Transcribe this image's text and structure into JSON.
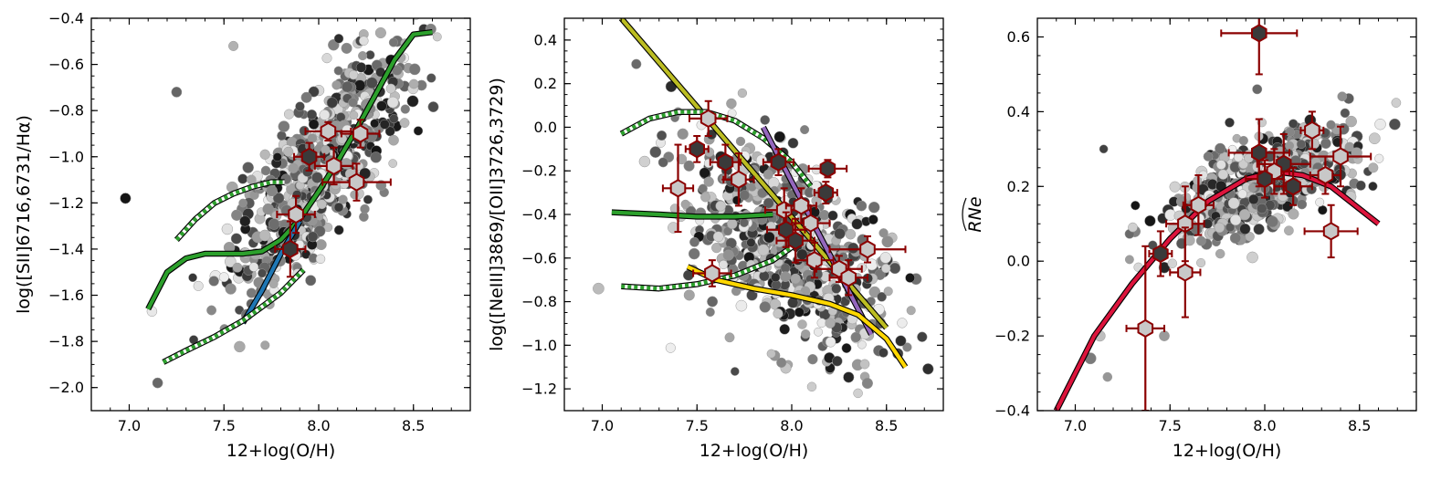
{
  "chart_data": [
    {
      "type": "scatter",
      "xlabel": "12+log(O/H)",
      "ylabel": "log([SII]6716,6731/Hα)",
      "xlim": [
        6.8,
        8.8
      ],
      "ylim": [
        -2.1,
        -0.4
      ],
      "xticks": [
        7.0,
        7.5,
        8.0,
        8.5
      ],
      "xtick_labels": [
        "7.0",
        "7.5",
        "8.0",
        "8.5"
      ],
      "yticks": [
        -2.0,
        -1.8,
        -1.6,
        -1.4,
        -1.2,
        -1.0,
        -0.8,
        -0.6,
        -0.4
      ],
      "ytick_labels": [
        "−2.0",
        "−1.8",
        "−1.6",
        "−1.4",
        "−1.2",
        "−1.0",
        "−0.8",
        "−0.6",
        "−0.4"
      ],
      "cloud": {
        "x_mean": 8.0,
        "x_sd": 0.24,
        "y_center": -1.05,
        "slope": 0.9,
        "y_sd": 0.17,
        "n": 700,
        "outliers": [
          [
            6.98,
            -1.18
          ],
          [
            7.15,
            -1.98
          ],
          [
            7.55,
            -0.52
          ],
          [
            7.25,
            -0.72
          ],
          [
            7.12,
            -1.67
          ]
        ]
      },
      "curves": [
        {
          "name": "green-solid",
          "color": "#2ca02c",
          "style": "solid",
          "x": [
            7.1,
            7.2,
            7.3,
            7.4,
            7.5,
            7.6,
            7.7,
            7.8,
            7.9,
            8.0,
            8.1,
            8.2,
            8.3,
            8.4,
            8.5,
            8.6
          ],
          "y": [
            -1.66,
            -1.5,
            -1.44,
            -1.42,
            -1.42,
            -1.42,
            -1.41,
            -1.36,
            -1.27,
            -1.15,
            -1.02,
            -0.88,
            -0.73,
            -0.58,
            -0.47,
            -0.46
          ]
        },
        {
          "name": "blue",
          "color": "#1f77b4",
          "style": "solid",
          "x": [
            7.6,
            7.7,
            7.8,
            7.9
          ],
          "y": [
            -1.72,
            -1.58,
            -1.42,
            -1.28
          ]
        },
        {
          "name": "green-dashed-high",
          "color": "#2ca02c",
          "style": "dashed",
          "x": [
            7.25,
            7.35,
            7.45,
            7.55,
            7.65,
            7.75,
            7.82
          ],
          "y": [
            -1.36,
            -1.27,
            -1.2,
            -1.16,
            -1.13,
            -1.11,
            -1.11
          ]
        },
        {
          "name": "green-dashed-low",
          "color": "#2ca02c",
          "style": "dashed",
          "x": [
            7.18,
            7.3,
            7.45,
            7.6,
            7.7,
            7.8,
            7.92
          ],
          "y": [
            -1.89,
            -1.84,
            -1.78,
            -1.71,
            -1.65,
            -1.59,
            -1.49
          ]
        }
      ],
      "binned": [
        {
          "x": 8.05,
          "y": -0.89,
          "xerr": 0.12,
          "yerr": 0.04,
          "shade": "light"
        },
        {
          "x": 8.22,
          "y": -0.9,
          "xerr": 0.1,
          "yerr": 0.06,
          "shade": "light"
        },
        {
          "x": 7.95,
          "y": -1.0,
          "xerr": 0.08,
          "yerr": 0.06,
          "shade": "dark"
        },
        {
          "x": 8.08,
          "y": -1.04,
          "xerr": 0.1,
          "yerr": 0.08,
          "shade": "light"
        },
        {
          "x": 8.2,
          "y": -1.11,
          "xerr": 0.18,
          "yerr": 0.08,
          "shade": "light"
        },
        {
          "x": 7.88,
          "y": -1.25,
          "xerr": 0.1,
          "yerr": 0.08,
          "shade": "light"
        },
        {
          "x": 7.85,
          "y": -1.4,
          "xerr": 0.08,
          "yerr": 0.12,
          "shade": "dark"
        }
      ]
    },
    {
      "type": "scatter",
      "xlabel": "12+log(O/H)",
      "ylabel": "log([NeIII]3869/[OII]3726,3729)",
      "xlim": [
        6.8,
        8.8
      ],
      "ylim": [
        -1.3,
        0.5
      ],
      "xticks": [
        7.0,
        7.5,
        8.0,
        8.5
      ],
      "xtick_labels": [
        "7.0",
        "7.5",
        "8.0",
        "8.5"
      ],
      "yticks": [
        -1.2,
        -1.0,
        -0.8,
        -0.6,
        -0.4,
        -0.2,
        0.0,
        0.2,
        0.4
      ],
      "ytick_labels": [
        "−1.2",
        "−1.0",
        "−0.8",
        "−0.6",
        "−0.4",
        "−0.2",
        "0.0",
        "0.2",
        "0.4"
      ],
      "cloud": {
        "x_mean": 8.0,
        "x_sd": 0.26,
        "y_center": -0.55,
        "slope": -0.4,
        "y_sd": 0.2,
        "n": 700,
        "outliers": [
          [
            6.98,
            -0.74
          ],
          [
            7.7,
            -1.12
          ],
          [
            8.35,
            -1.22
          ],
          [
            7.18,
            0.29
          ],
          [
            7.4,
            0.07
          ]
        ]
      },
      "curves": [
        {
          "name": "yellow-olive-line",
          "color": "#bcbd22",
          "style": "solid",
          "x": [
            7.1,
            8.5
          ],
          "y": [
            0.5,
            -0.92
          ]
        },
        {
          "name": "green-solid",
          "color": "#2ca02c",
          "style": "solid",
          "x": [
            7.05,
            7.3,
            7.5,
            7.7,
            7.9
          ],
          "y": [
            -0.39,
            -0.4,
            -0.41,
            -0.41,
            -0.4
          ]
        },
        {
          "name": "green-dashed-top",
          "color": "#2ca02c",
          "style": "dashed",
          "x": [
            7.1,
            7.25,
            7.4,
            7.55,
            7.7,
            7.85,
            8.0,
            8.1
          ],
          "y": [
            -0.03,
            0.04,
            0.07,
            0.07,
            0.03,
            -0.05,
            -0.16,
            -0.27
          ]
        },
        {
          "name": "green-dashed-low",
          "color": "#2ca02c",
          "style": "dashed",
          "x": [
            7.1,
            7.3,
            7.5,
            7.7,
            7.9,
            8.0
          ],
          "y": [
            -0.73,
            -0.74,
            -0.72,
            -0.68,
            -0.61,
            -0.55
          ]
        },
        {
          "name": "purple",
          "color": "#9467bd",
          "style": "solid",
          "x": [
            7.85,
            8.0,
            8.15,
            8.3,
            8.42
          ],
          "y": [
            0.0,
            -0.25,
            -0.5,
            -0.75,
            -0.95
          ]
        },
        {
          "name": "yellow",
          "color": "#ffd700",
          "style": "solid",
          "x": [
            7.45,
            7.6,
            7.8,
            8.0,
            8.2,
            8.35,
            8.5,
            8.6
          ],
          "y": [
            -0.64,
            -0.7,
            -0.74,
            -0.77,
            -0.81,
            -0.86,
            -0.97,
            -1.1
          ]
        }
      ],
      "binned": [
        {
          "x": 7.56,
          "y": 0.04,
          "xerr": 0.1,
          "yerr": 0.08,
          "shade": "light"
        },
        {
          "x": 7.5,
          "y": -0.1,
          "xerr": 0.06,
          "yerr": 0.06,
          "shade": "dark"
        },
        {
          "x": 7.65,
          "y": -0.16,
          "xerr": 0.08,
          "yerr": 0.08,
          "shade": "dark"
        },
        {
          "x": 7.93,
          "y": -0.16,
          "xerr": 0.08,
          "yerr": 0.06,
          "shade": "dark"
        },
        {
          "x": 8.19,
          "y": -0.19,
          "xerr": 0.1,
          "yerr": 0.04,
          "shade": "dark"
        },
        {
          "x": 7.4,
          "y": -0.28,
          "xerr": 0.08,
          "yerr": 0.2,
          "shade": "light"
        },
        {
          "x": 7.72,
          "y": -0.24,
          "xerr": 0.08,
          "yerr": 0.12,
          "shade": "light"
        },
        {
          "x": 8.18,
          "y": -0.3,
          "xerr": 0.06,
          "yerr": 0.05,
          "shade": "dark"
        },
        {
          "x": 7.96,
          "y": -0.38,
          "xerr": 0.1,
          "yerr": 0.1,
          "shade": "light"
        },
        {
          "x": 8.05,
          "y": -0.36,
          "xerr": 0.08,
          "yerr": 0.08,
          "shade": "light"
        },
        {
          "x": 8.1,
          "y": -0.44,
          "xerr": 0.1,
          "yerr": 0.08,
          "shade": "light"
        },
        {
          "x": 7.97,
          "y": -0.47,
          "xerr": 0.1,
          "yerr": 0.08,
          "shade": "dark"
        },
        {
          "x": 8.02,
          "y": -0.52,
          "xerr": 0.1,
          "yerr": 0.1,
          "shade": "dark"
        },
        {
          "x": 8.4,
          "y": -0.56,
          "xerr": 0.2,
          "yerr": 0.06,
          "shade": "light"
        },
        {
          "x": 8.12,
          "y": -0.61,
          "xerr": 0.1,
          "yerr": 0.08,
          "shade": "light"
        },
        {
          "x": 8.25,
          "y": -0.65,
          "xerr": 0.12,
          "yerr": 0.06,
          "shade": "light"
        },
        {
          "x": 8.3,
          "y": -0.69,
          "xerr": 0.1,
          "yerr": 0.08,
          "shade": "light"
        },
        {
          "x": 7.58,
          "y": -0.67,
          "xerr": 0.1,
          "yerr": 0.06,
          "shade": "light"
        }
      ]
    },
    {
      "type": "scatter",
      "xlabel": "12+log(O/H)",
      "ylabel": "RNe",
      "ylabel_hat": true,
      "xlim": [
        6.8,
        8.8
      ],
      "ylim": [
        -0.4,
        0.65
      ],
      "xticks": [
        7.0,
        7.5,
        8.0,
        8.5
      ],
      "xtick_labels": [
        "7.0",
        "7.5",
        "8.0",
        "8.5"
      ],
      "yticks": [
        -0.4,
        -0.2,
        0.0,
        0.2,
        0.4,
        0.6
      ],
      "ytick_labels": [
        "−0.4",
        "−0.2",
        "0.0",
        "0.2",
        "0.4",
        "0.6"
      ],
      "cloud": {
        "x_mean": 8.0,
        "x_sd": 0.25,
        "y_center": 0.21,
        "slope": 0.2,
        "y_sd": 0.06,
        "n": 650,
        "outliers": [
          [
            7.08,
            -0.26
          ],
          [
            7.13,
            -0.2
          ],
          [
            7.17,
            -0.31
          ],
          [
            7.47,
            -0.2
          ],
          [
            7.96,
            0.46
          ],
          [
            7.15,
            0.3
          ]
        ]
      },
      "curves": [
        {
          "name": "crimson",
          "color": "#dc143c",
          "style": "solid",
          "x": [
            6.9,
            7.1,
            7.3,
            7.5,
            7.7,
            7.9,
            8.05,
            8.2,
            8.35,
            8.5,
            8.6
          ],
          "y": [
            -0.4,
            -0.2,
            -0.06,
            0.06,
            0.16,
            0.22,
            0.24,
            0.23,
            0.2,
            0.14,
            0.1
          ]
        }
      ],
      "binned": [
        {
          "x": 7.97,
          "y": 0.61,
          "xerr": 0.2,
          "yerr": 0.11,
          "shade": "dark"
        },
        {
          "x": 8.25,
          "y": 0.35,
          "xerr": 0.06,
          "yerr": 0.05,
          "shade": "light"
        },
        {
          "x": 7.97,
          "y": 0.29,
          "xerr": 0.16,
          "yerr": 0.09,
          "shade": "dark"
        },
        {
          "x": 8.4,
          "y": 0.28,
          "xerr": 0.16,
          "yerr": 0.08,
          "shade": "light"
        },
        {
          "x": 8.1,
          "y": 0.26,
          "xerr": 0.14,
          "yerr": 0.08,
          "shade": "dark"
        },
        {
          "x": 8.05,
          "y": 0.24,
          "xerr": 0.08,
          "yerr": 0.06,
          "shade": "light"
        },
        {
          "x": 8.32,
          "y": 0.23,
          "xerr": 0.08,
          "yerr": 0.05,
          "shade": "light"
        },
        {
          "x": 8.0,
          "y": 0.22,
          "xerr": 0.1,
          "yerr": 0.05,
          "shade": "dark"
        },
        {
          "x": 8.15,
          "y": 0.2,
          "xerr": 0.1,
          "yerr": 0.05,
          "shade": "dark"
        },
        {
          "x": 7.65,
          "y": 0.15,
          "xerr": 0.08,
          "yerr": 0.08,
          "shade": "light"
        },
        {
          "x": 7.58,
          "y": 0.1,
          "xerr": 0.1,
          "yerr": 0.1,
          "shade": "light"
        },
        {
          "x": 8.35,
          "y": 0.08,
          "xerr": 0.14,
          "yerr": 0.07,
          "shade": "light"
        },
        {
          "x": 7.45,
          "y": 0.02,
          "xerr": 0.06,
          "yerr": 0.06,
          "shade": "dark"
        },
        {
          "x": 7.58,
          "y": -0.03,
          "xerr": 0.08,
          "yerr": 0.12,
          "shade": "light"
        },
        {
          "x": 7.37,
          "y": -0.18,
          "xerr": 0.1,
          "yerr": 0.22,
          "shade": "light"
        }
      ]
    }
  ],
  "colors": {
    "errorbar": "#8b0000",
    "hex_light": "#c8c8c8",
    "hex_dark": "#3a3a3a"
  }
}
